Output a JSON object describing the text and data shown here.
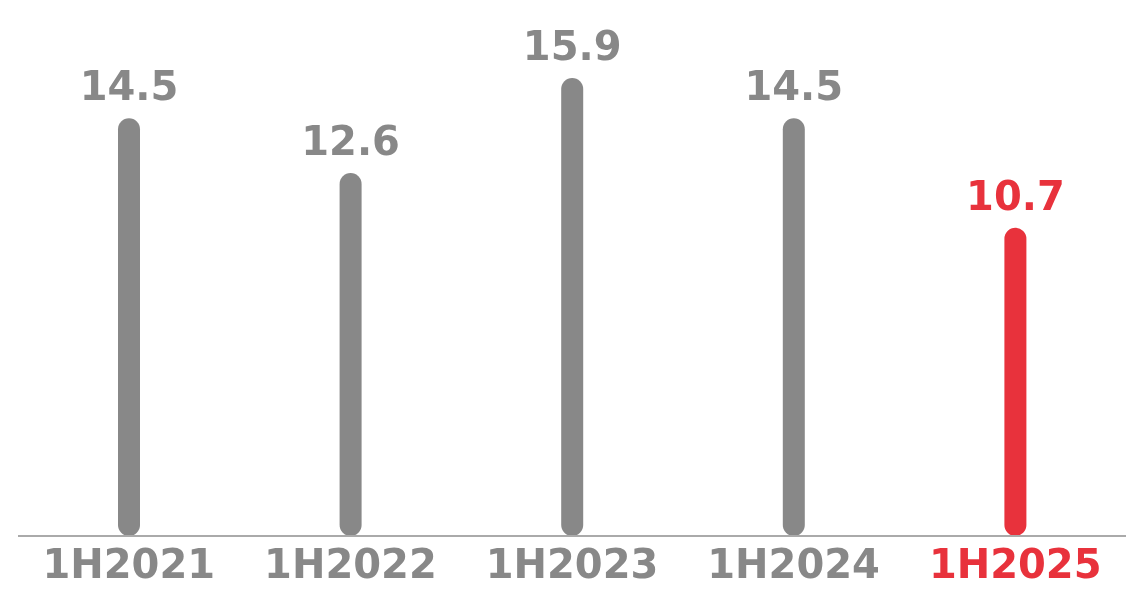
{
  "chart_data": {
    "type": "bar",
    "categories": [
      "1H2021",
      "1H2022",
      "1H2023",
      "1H2024",
      "1H2025"
    ],
    "values": [
      14.5,
      12.6,
      15.9,
      14.5,
      10.7
    ],
    "colors": [
      "#888888",
      "#888888",
      "#888888",
      "#888888",
      "#e8323c"
    ],
    "data_labels": true
  }
}
